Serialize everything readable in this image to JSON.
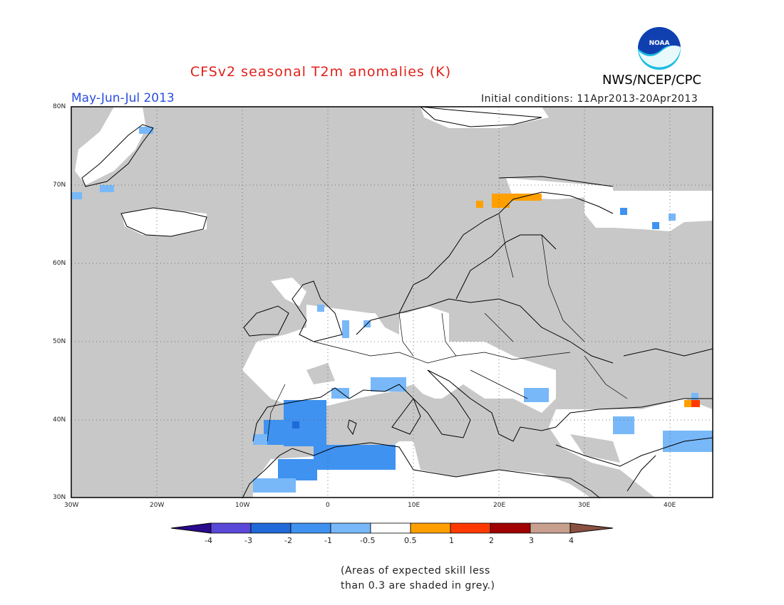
{
  "title": "CFSv2 seasonal T2m anomalies (K)",
  "agency": "NWS/NCEP/CPC",
  "logo_text": "NOAA",
  "season": "May-Jun-Jul 2013",
  "initial_conditions": "Initial conditions: 11Apr2013-20Apr2013",
  "note_line1": "(Areas of expected skill less",
  "note_line2": "than 0.3 are shaded in grey.)",
  "map": {
    "lat_labels": [
      "80N",
      "70N",
      "60N",
      "50N",
      "40N",
      "30N"
    ],
    "lon_labels": [
      "30W",
      "20W",
      "10W",
      "0",
      "10E",
      "20E",
      "30E",
      "40E"
    ],
    "colors": {
      "skill_grey": "#c8c8c8",
      "land_white": "#ffffff",
      "border": "#000000"
    }
  },
  "colorbar": {
    "labels": [
      "-4",
      "-3",
      "-2",
      "-1",
      "-0.5",
      "0.5",
      "1",
      "2",
      "3",
      "4"
    ],
    "colors": [
      "#2a0a8c",
      "#5a48d8",
      "#1f6ad8",
      "#3f92f0",
      "#78b8f8",
      "#ffffff",
      "#ffa000",
      "#ff3a00",
      "#a00000",
      "#c8a090",
      "#8a5040"
    ]
  }
}
